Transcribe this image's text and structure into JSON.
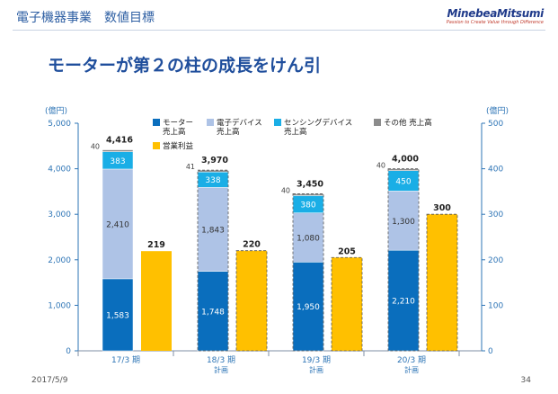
{
  "header": {
    "title": "電子機器事業　数値目標"
  },
  "logo": {
    "name": "MinebeaMitsumi",
    "tagline": "Passion to Create Value through Difference"
  },
  "subtitle": "モーターが第２の柱の成長をけん引",
  "footer": {
    "date": "2017/5/9",
    "page": "34"
  },
  "colors": {
    "motor": "#0a6ebd",
    "electronic": "#aec3e6",
    "sensing": "#1aaee6",
    "other": "#8c8c8c",
    "profit": "#ffc000",
    "axis": "#2e75b6"
  },
  "chart_data": {
    "type": "bar",
    "categories": [
      "17/3 期",
      "18/3 期",
      "19/3 期",
      "20/3 期"
    ],
    "category_sublabels": [
      "",
      "計画",
      "計画",
      "計画"
    ],
    "plan_flags": [
      false,
      true,
      true,
      true
    ],
    "stack_series": [
      {
        "name": "モーター売上高",
        "legend_lines": [
          "モーター",
          "売上高"
        ],
        "values": [
          1583,
          1748,
          1950,
          2210
        ],
        "labels": [
          "1,583",
          "1,748",
          "1,950",
          "2,210"
        ]
      },
      {
        "name": "電子デバイス売上高",
        "legend_lines": [
          "電子デバイス",
          "売上高"
        ],
        "values": [
          2410,
          1843,
          1080,
          1300
        ],
        "labels": [
          "2,410",
          "1,843",
          "1,080",
          "1,300"
        ]
      },
      {
        "name": "センシングデバイス売上高",
        "legend_lines": [
          "センシングデバイス",
          "売上高"
        ],
        "values": [
          383,
          338,
          380,
          450
        ],
        "labels": [
          "383",
          "338",
          "380",
          "450"
        ]
      },
      {
        "name": "その他 売上高",
        "legend_lines": [
          "その他 売上高"
        ],
        "values": [
          40,
          41,
          40,
          40
        ],
        "labels": [
          "40",
          "41",
          "40",
          "40"
        ]
      }
    ],
    "totals": [
      4416,
      3970,
      3450,
      4000
    ],
    "total_labels": [
      "4,416",
      "3,970",
      "3,450",
      "4,000"
    ],
    "profit_series": {
      "name": "営業利益",
      "legend_lines": [
        "営業利益"
      ],
      "values": [
        219,
        220,
        205,
        300
      ],
      "labels": [
        "219",
        "220",
        "205",
        "300"
      ]
    },
    "left_axis": {
      "unit": "(億円)",
      "min": 0,
      "max": 5000,
      "ticks": [
        0,
        1000,
        2000,
        3000,
        4000,
        5000
      ],
      "tick_labels": [
        "0",
        "1,000",
        "2,000",
        "3,000",
        "4,000",
        "5,000"
      ]
    },
    "right_axis": {
      "unit": "(億円)",
      "min": 0,
      "max": 500,
      "ticks": [
        0,
        100,
        200,
        300,
        400,
        500
      ],
      "tick_labels": [
        "0",
        "100",
        "200",
        "300",
        "400",
        "500"
      ]
    },
    "legend_position": "top"
  }
}
